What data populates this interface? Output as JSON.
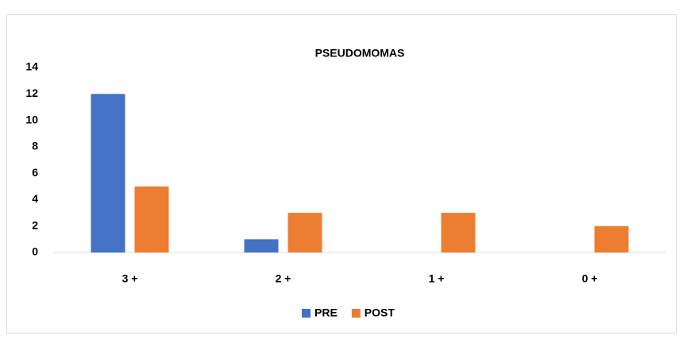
{
  "chart_data": {
    "type": "bar",
    "title": "PSEUDOMOMAS",
    "categories": [
      "3 +",
      "2 +",
      "1 +",
      "0 +"
    ],
    "series": [
      {
        "name": "PRE",
        "color": "#4472c4",
        "values": [
          12,
          1,
          0,
          0
        ]
      },
      {
        "name": "POST",
        "color": "#ed7d31",
        "values": [
          5,
          3,
          3,
          2
        ]
      }
    ],
    "ylim": [
      0,
      14
    ],
    "yticks": [
      0,
      2,
      4,
      6,
      8,
      10,
      12,
      14
    ],
    "grid": false,
    "legend": "bottom"
  }
}
